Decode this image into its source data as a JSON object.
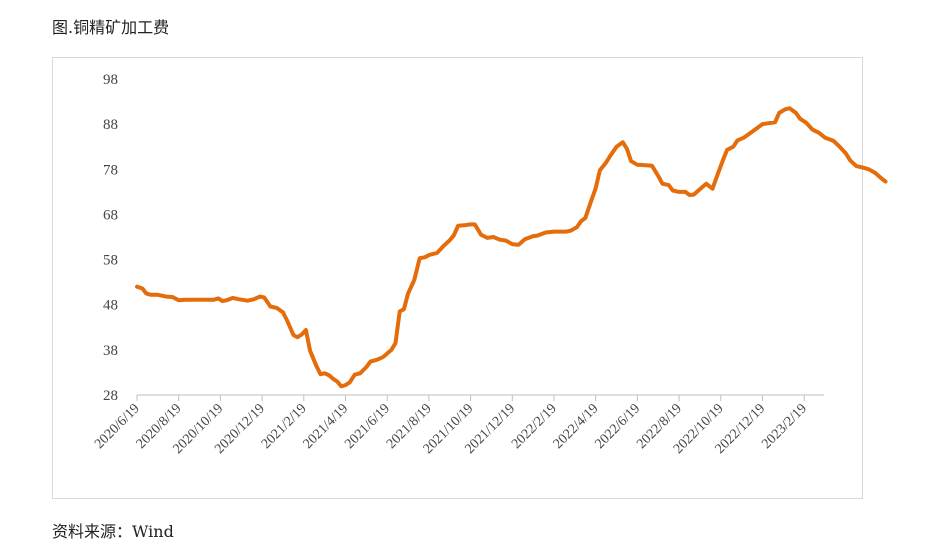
{
  "figure": {
    "title": "图.铜精矿加工费",
    "source": "资料来源：Wind"
  },
  "colors": {
    "line": "#E46C0A",
    "axis": "#bfbfbf",
    "frame": "#d9d9d9"
  },
  "chart_data": {
    "type": "line",
    "title": "图.铜精矿加工费",
    "xlabel": "",
    "ylabel": "",
    "ylim": [
      28,
      98
    ],
    "y_ticks": [
      98,
      88,
      78,
      68,
      58,
      48,
      38,
      28
    ],
    "x_tick_labels": [
      "2020/6/19",
      "2020/8/19",
      "2020/10/19",
      "2020/12/19",
      "2021/2/19",
      "2021/4/19",
      "2021/6/19",
      "2021/8/19",
      "2021/10/19",
      "2021/12/19",
      "2022/2/19",
      "2022/4/19",
      "2022/6/19",
      "2022/8/19",
      "2022/10/19",
      "2022/12/19",
      "2023/2/19"
    ],
    "grid": false,
    "legend": "none",
    "series": [
      {
        "values": [
          [
            0,
            52
          ],
          [
            0.13,
            51.6
          ],
          [
            0.22,
            50.5
          ],
          [
            0.33,
            50.2
          ],
          [
            0.5,
            50.2
          ],
          [
            0.7,
            49.8
          ],
          [
            0.85,
            49.7
          ],
          [
            1.0,
            49.0
          ],
          [
            1.15,
            49.1
          ],
          [
            1.3,
            49.1
          ],
          [
            1.5,
            49.1
          ],
          [
            1.7,
            49.1
          ],
          [
            1.85,
            49.1
          ],
          [
            1.95,
            49.4
          ],
          [
            2.05,
            48.8
          ],
          [
            2.15,
            49.0
          ],
          [
            2.3,
            49.5
          ],
          [
            2.45,
            49.2
          ],
          [
            2.65,
            48.9
          ],
          [
            2.8,
            49.2
          ],
          [
            2.95,
            49.8
          ],
          [
            3.05,
            49.6
          ],
          [
            3.2,
            47.6
          ],
          [
            3.35,
            47.3
          ],
          [
            3.5,
            46.3
          ],
          [
            3.6,
            44.5
          ],
          [
            3.75,
            41.3
          ],
          [
            3.85,
            40.8
          ],
          [
            3.95,
            41.4
          ],
          [
            4.05,
            42.4
          ],
          [
            4.15,
            37.8
          ],
          [
            4.3,
            34.5
          ],
          [
            4.4,
            32.6
          ],
          [
            4.5,
            32.8
          ],
          [
            4.6,
            32.4
          ],
          [
            4.7,
            31.6
          ],
          [
            4.8,
            31.0
          ],
          [
            4.9,
            29.9
          ],
          [
            5.0,
            30.2
          ],
          [
            5.1,
            30.8
          ],
          [
            5.22,
            32.5
          ],
          [
            5.35,
            32.8
          ],
          [
            5.5,
            34.2
          ],
          [
            5.6,
            35.4
          ],
          [
            5.75,
            35.8
          ],
          [
            5.9,
            36.4
          ],
          [
            6.0,
            37.2
          ],
          [
            6.1,
            38.0
          ],
          [
            6.2,
            39.5
          ],
          [
            6.3,
            46.5
          ],
          [
            6.4,
            47.0
          ],
          [
            6.5,
            50.5
          ],
          [
            6.65,
            53.5
          ],
          [
            6.78,
            58.3
          ],
          [
            6.9,
            58.5
          ],
          [
            7.0,
            59.0
          ],
          [
            7.2,
            59.5
          ],
          [
            7.35,
            61.0
          ],
          [
            7.5,
            62.3
          ],
          [
            7.6,
            63.4
          ],
          [
            7.7,
            65.5
          ],
          [
            7.85,
            65.6
          ],
          [
            8.0,
            65.8
          ],
          [
            8.1,
            65.8
          ],
          [
            8.25,
            63.5
          ],
          [
            8.4,
            62.8
          ],
          [
            8.55,
            63.0
          ],
          [
            8.7,
            62.4
          ],
          [
            8.85,
            62.2
          ],
          [
            9.0,
            61.4
          ],
          [
            9.15,
            61.3
          ],
          [
            9.3,
            62.5
          ],
          [
            9.5,
            63.2
          ],
          [
            9.6,
            63.3
          ],
          [
            9.8,
            64.0
          ],
          [
            10.0,
            64.2
          ],
          [
            10.3,
            64.2
          ],
          [
            10.4,
            64.4
          ],
          [
            10.55,
            65.2
          ],
          [
            10.65,
            66.5
          ],
          [
            10.75,
            67.2
          ],
          [
            10.9,
            71.2
          ],
          [
            11.0,
            73.8
          ],
          [
            11.1,
            77.8
          ],
          [
            11.25,
            79.5
          ],
          [
            11.35,
            81.0
          ],
          [
            11.5,
            83.0
          ],
          [
            11.65,
            84.0
          ],
          [
            11.75,
            82.5
          ],
          [
            11.85,
            79.8
          ],
          [
            12.0,
            79.0
          ],
          [
            12.2,
            78.9
          ],
          [
            12.35,
            78.8
          ],
          [
            12.5,
            76.5
          ],
          [
            12.6,
            74.8
          ],
          [
            12.75,
            74.5
          ],
          [
            12.85,
            73.3
          ],
          [
            13.0,
            73.0
          ],
          [
            13.15,
            73.0
          ],
          [
            13.25,
            72.3
          ],
          [
            13.35,
            72.4
          ],
          [
            13.5,
            73.6
          ],
          [
            13.65,
            74.8
          ],
          [
            13.8,
            73.7
          ],
          [
            13.95,
            77.5
          ],
          [
            14.05,
            80.0
          ],
          [
            14.15,
            82.3
          ],
          [
            14.3,
            83.0
          ],
          [
            14.4,
            84.4
          ],
          [
            14.55,
            85.0
          ],
          [
            14.7,
            86.0
          ],
          [
            14.85,
            87.0
          ],
          [
            15.0,
            88.0
          ],
          [
            15.15,
            88.2
          ],
          [
            15.3,
            88.4
          ],
          [
            15.4,
            90.5
          ],
          [
            15.55,
            91.3
          ],
          [
            15.65,
            91.5
          ],
          [
            15.8,
            90.5
          ],
          [
            15.9,
            89.2
          ],
          [
            16.05,
            88.3
          ],
          [
            16.2,
            86.8
          ],
          [
            16.35,
            86.1
          ],
          [
            16.5,
            85.0
          ],
          [
            16.7,
            84.3
          ],
          [
            16.85,
            83.0
          ],
          [
            17.0,
            81.5
          ],
          [
            17.1,
            80.0
          ],
          [
            17.25,
            78.7
          ],
          [
            17.4,
            78.4
          ],
          [
            17.55,
            78.0
          ],
          [
            17.7,
            77.2
          ],
          [
            17.85,
            76.0
          ],
          [
            17.95,
            75.3
          ]
        ]
      }
    ]
  }
}
